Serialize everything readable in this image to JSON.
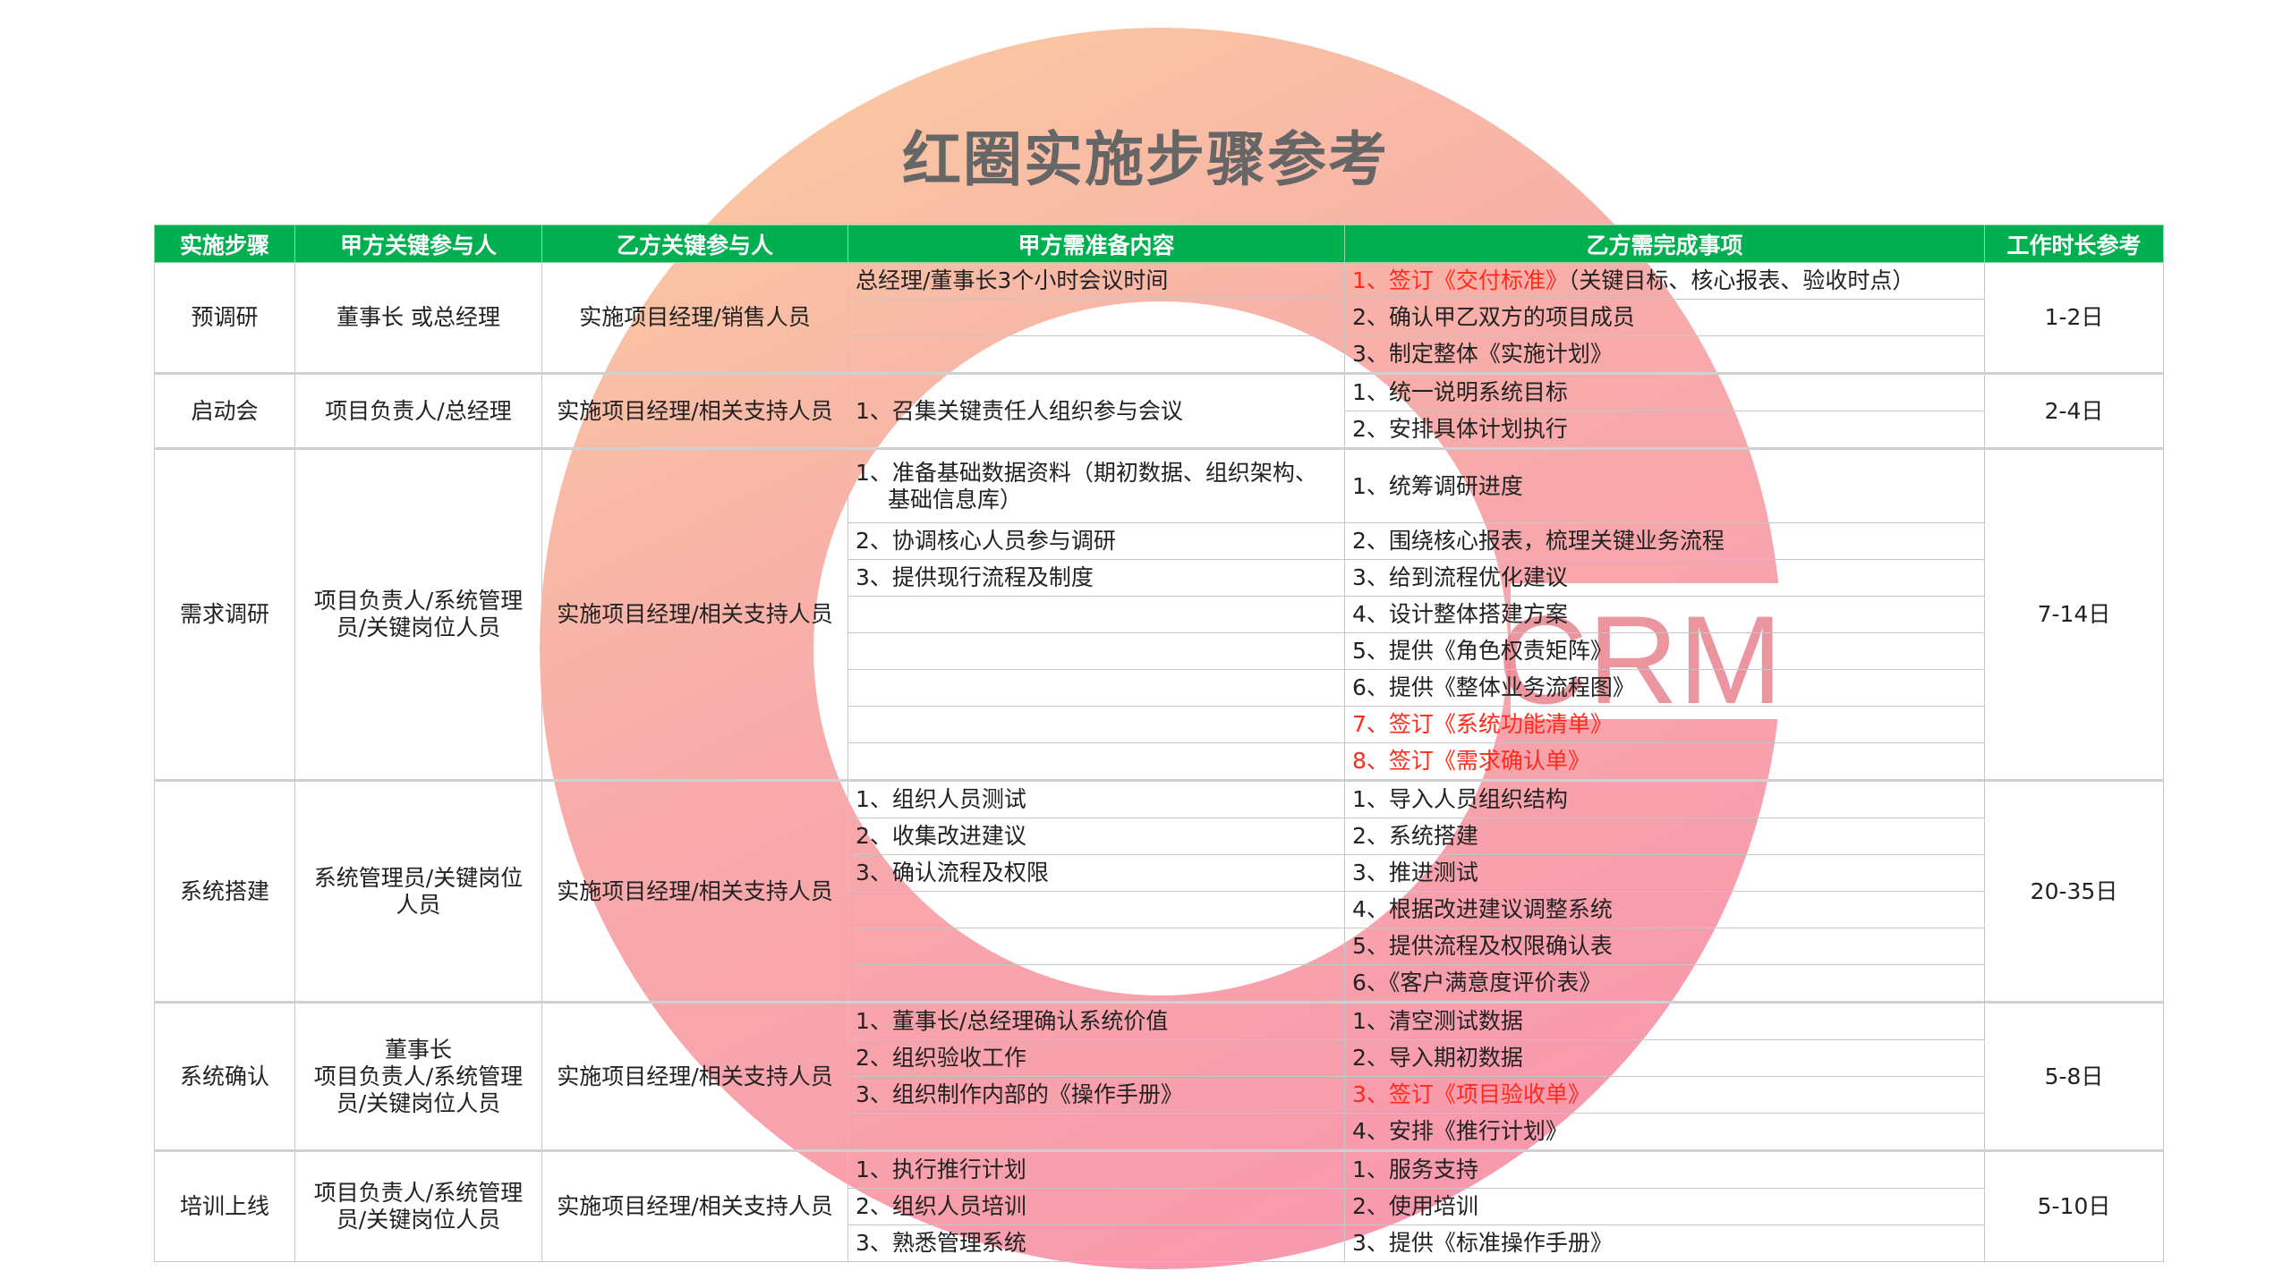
{
  "title": "红圈实施步骤参考",
  "watermark": "CRM",
  "colors": {
    "header_bg": "#00b050",
    "highlight_text": "#ff2a1a",
    "ring_start": "#f9c49a",
    "ring_end": "#f78fa7"
  },
  "table": {
    "headers": [
      "实施步骤",
      "甲方关键参与人",
      "乙方关键参与人",
      "甲方需准备内容",
      "乙方需完成事项",
      "工作时长参考"
    ],
    "groups": [
      {
        "step": "预调研",
        "party_a": "董事长 或总经理",
        "party_b": "实施项目经理/销售人员",
        "duration": "1-2日",
        "items": [
          {
            "prep": "总经理/董事长3个小时会议时间",
            "task_red": "1、签订《交付标准》",
            "task": "（关键目标、核心报表、验收时点）"
          },
          {
            "prep": "",
            "task": "2、确认甲乙双方的项目成员"
          },
          {
            "prep": "",
            "task": "3、制定整体《实施计划》"
          }
        ]
      },
      {
        "step": "启动会",
        "party_a": "项目负责人/总经理",
        "party_b": "实施项目经理/相关支持人员",
        "duration": "2-4日",
        "prep_merged": "1、召集关键责任人组织参与会议",
        "items": [
          {
            "task": "1、统一说明系统目标"
          },
          {
            "task": "2、安排具体计划执行"
          }
        ]
      },
      {
        "step": "需求调研",
        "party_a": "项目负责人/系统管理员/关键岗位人员",
        "party_b": "实施项目经理/相关支持人员",
        "duration": "7-14日",
        "items": [
          {
            "prep": "1、准备基础数据资料（期初数据、组织架构、基础信息库）",
            "task": "1、统筹调研进度"
          },
          {
            "prep": "2、协调核心人员参与调研",
            "task": "2、围绕核心报表，梳理关键业务流程"
          },
          {
            "prep": "3、提供现行流程及制度",
            "task": "3、给到流程优化建议"
          },
          {
            "prep": "",
            "task": "4、设计整体搭建方案"
          },
          {
            "prep": "",
            "task": "5、提供《角色权责矩阵》"
          },
          {
            "prep": "",
            "task": "6、提供《整体业务流程图》"
          },
          {
            "prep": "",
            "task_red": "7、签订《系统功能清单》"
          },
          {
            "prep": "",
            "task_red": "8、签订《需求确认单》"
          }
        ]
      },
      {
        "step": "系统搭建",
        "party_a": "系统管理员/关键岗位人员",
        "party_b": "实施项目经理/相关支持人员",
        "duration": "20-35日",
        "items": [
          {
            "prep": "1、组织人员测试",
            "task": "1、导入人员组织结构"
          },
          {
            "prep": "2、收集改进建议",
            "task": "2、系统搭建"
          },
          {
            "prep": "3、确认流程及权限",
            "task": "3、推进测试"
          },
          {
            "prep": "",
            "task": "4、根据改进建议调整系统"
          },
          {
            "prep": "",
            "task": "5、提供流程及权限确认表"
          },
          {
            "prep": "",
            "task": "6、《客户满意度评价表》"
          }
        ]
      },
      {
        "step": "系统确认",
        "party_a": "董事长\n项目负责人/系统管理员/关键岗位人员",
        "party_b": "实施项目经理/相关支持人员",
        "duration": "5-8日",
        "items": [
          {
            "prep": "1、董事长/总经理确认系统价值",
            "task": "1、清空测试数据"
          },
          {
            "prep": "2、组织验收工作",
            "task": "2、导入期初数据"
          },
          {
            "prep": "3、组织制作内部的《操作手册》",
            "task_red": "3、签订《项目验收单》"
          },
          {
            "prep": "",
            "task": "4、安排《推行计划》"
          }
        ]
      },
      {
        "step": "培训上线",
        "party_a": "项目负责人/系统管理员/关键岗位人员",
        "party_b": "实施项目经理/相关支持人员",
        "duration": "5-10日",
        "items": [
          {
            "prep": "1、执行推行计划",
            "task": "1、服务支持"
          },
          {
            "prep": "2、组织人员培训",
            "task": "2、使用培训"
          },
          {
            "prep": "3、熟悉管理系统",
            "task": "3、提供《标准操作手册》"
          }
        ]
      }
    ]
  }
}
